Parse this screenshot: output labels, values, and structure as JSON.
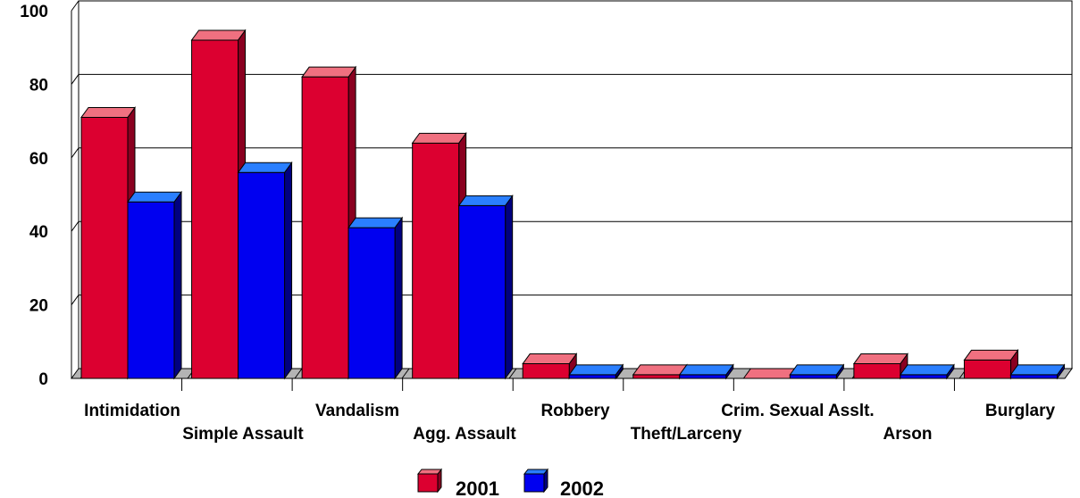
{
  "chart_data": {
    "type": "bar",
    "categories": [
      "Intimidation",
      "Simple Assault",
      "Vandalism",
      "Agg. Assault",
      "Robbery",
      "Theft/Larceny",
      "Crim. Sexual Asslt.",
      "Arson",
      "Burglary"
    ],
    "series": [
      {
        "name": "2001",
        "values": [
          71,
          92,
          82,
          64,
          4,
          1,
          0,
          4,
          5
        ],
        "color": "#dc0030",
        "top_color": "#f07080",
        "side_color": "#8a0020"
      },
      {
        "name": "2002",
        "values": [
          48,
          56,
          41,
          47,
          1,
          1,
          1,
          1,
          1
        ],
        "color": "#0000f0",
        "top_color": "#2a7fff",
        "side_color": "#000080"
      }
    ],
    "yticks": [
      0,
      20,
      40,
      60,
      80,
      100
    ],
    "ylim": [
      0,
      100
    ],
    "grid": true,
    "legend": "bottom-center",
    "title": "",
    "xlabel": "",
    "ylabel": ""
  }
}
